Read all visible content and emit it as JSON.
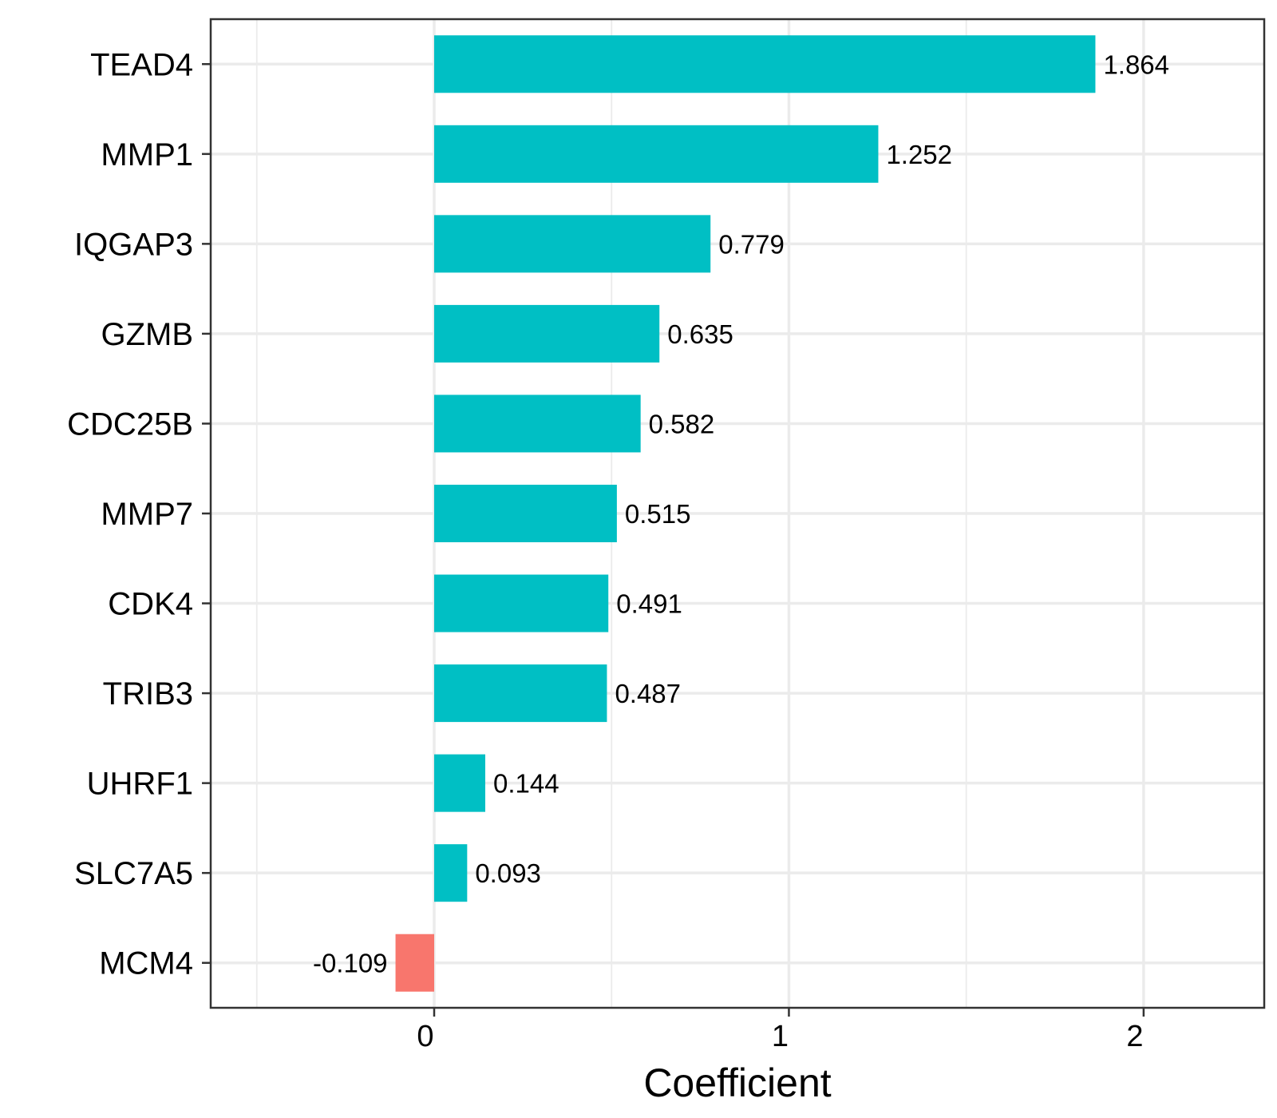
{
  "chart_data": {
    "type": "bar",
    "orientation": "horizontal",
    "categories": [
      "TEAD4",
      "MMP1",
      "IQGAP3",
      "GZMB",
      "CDC25B",
      "MMP7",
      "CDK4",
      "TRIB3",
      "UHRF1",
      "SLC7A5",
      "MCM4"
    ],
    "values": [
      1.864,
      1.252,
      0.779,
      0.635,
      0.582,
      0.515,
      0.491,
      0.487,
      0.144,
      0.093,
      -0.109
    ],
    "data_labels": [
      "1.864",
      "1.252",
      "0.779",
      "0.635",
      "0.582",
      "0.515",
      "0.491",
      "0.487",
      "0.144",
      "0.093",
      "-0.109"
    ],
    "xlabel": "Coefficient",
    "ylabel": "",
    "xlim": [
      -0.63,
      2.34
    ],
    "xticks": [
      0,
      1,
      2
    ],
    "xtick_labels": [
      "0",
      "1",
      "2"
    ],
    "grid": true,
    "legend": "none",
    "colors": {
      "positive": "#00BFC4",
      "negative": "#F8766D"
    }
  }
}
